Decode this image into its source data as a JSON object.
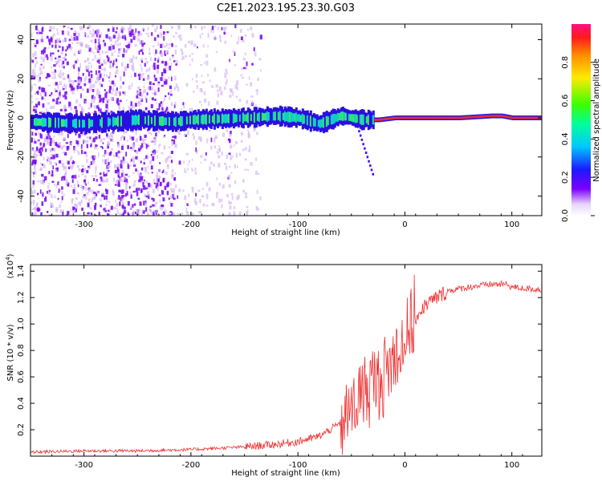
{
  "figure": {
    "title": "C2E1.2023.195.23.30.G03"
  },
  "chart_data": [
    {
      "type": "heatmap",
      "xlabel": "Height of straight line (km)",
      "ylabel": "Frequency (Hz)",
      "xlim": [
        -350,
        128
      ],
      "ylim": [
        -50,
        48
      ],
      "xticks": [
        "-300",
        "-200",
        "-100",
        "0",
        "100"
      ],
      "yticks": [
        "-40",
        "-20",
        "0",
        "20",
        "40"
      ],
      "ridge": {
        "x": [
          -350,
          -300,
          -250,
          -215,
          -200,
          -150,
          -120,
          -100,
          -80,
          -60,
          -40,
          -25,
          -10,
          0,
          20,
          50,
          80,
          90,
          100,
          128
        ],
        "frequency": [
          -2,
          -3,
          -1,
          -2,
          -1,
          0,
          1,
          0,
          -3,
          1,
          -1,
          -1,
          0,
          0,
          0,
          0,
          1,
          1,
          0,
          0
        ]
      },
      "colorbar": {
        "label": "Normalized spectral amplitude",
        "ticks": [
          "0.0",
          "0.2",
          "0.4",
          "0.6",
          "0.8"
        ],
        "range": [
          0,
          1
        ]
      }
    },
    {
      "type": "line",
      "xlabel": "Height of straight line (km)",
      "ylabel": "SNR (10 * v/v)",
      "multiplier_base": "(x10",
      "multiplier_exp": "4",
      "multiplier_close": ")",
      "xlim": [
        -350,
        128
      ],
      "ylim": [
        0,
        1.45
      ],
      "xticks": [
        "-300",
        "-200",
        "-100",
        "0",
        "100"
      ],
      "yticks": [
        "0.2",
        "0.4",
        "0.6",
        "0.8",
        "1.0",
        "1.2",
        "1.4"
      ],
      "color": "#ef3030",
      "x": [
        -350,
        -300,
        -250,
        -200,
        -150,
        -120,
        -100,
        -80,
        -60,
        -50,
        -40,
        -30,
        -20,
        -10,
        0,
        10,
        20,
        40,
        60,
        80,
        95,
        100,
        110,
        128
      ],
      "y": [
        0.03,
        0.04,
        0.04,
        0.05,
        0.07,
        0.09,
        0.11,
        0.15,
        0.25,
        0.35,
        0.48,
        0.55,
        0.6,
        0.75,
        0.9,
        1.05,
        1.15,
        1.25,
        1.28,
        1.3,
        1.3,
        1.28,
        1.27,
        1.26
      ]
    }
  ]
}
